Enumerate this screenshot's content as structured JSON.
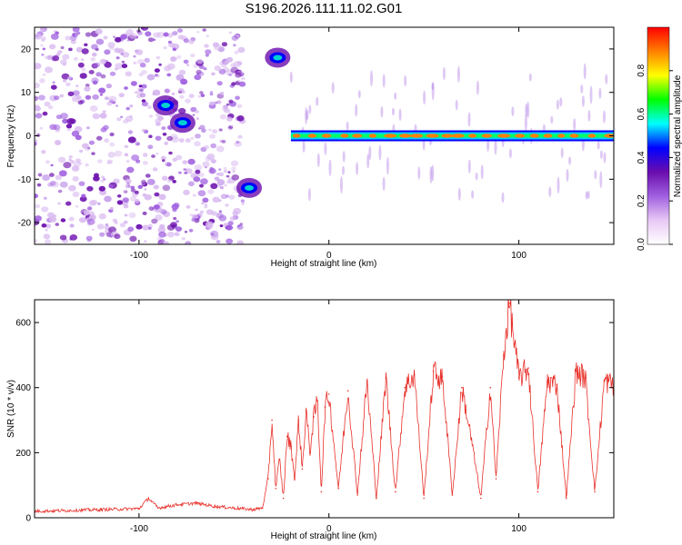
{
  "figure_title": "S196.2026.111.11.02.G01",
  "chart_data": [
    {
      "type": "heatmap",
      "title": "S196.2026.111.11.02.G01",
      "xlabel": "Height of straight line (km)",
      "ylabel": "Frequency (Hz)",
      "xlim": [
        -155,
        150
      ],
      "ylim": [
        -25,
        25
      ],
      "xticks": [
        -100,
        0,
        100
      ],
      "xtick_labels": [
        "-100",
        "0",
        "100"
      ],
      "yticks": [
        -20,
        -10,
        0,
        10,
        20
      ],
      "ytick_labels": [
        "-20",
        "-10",
        "0",
        "10",
        "20"
      ],
      "colorbar": {
        "label": "Normalized spectral amplitude",
        "range": [
          0,
          1
        ],
        "ticks": [
          0,
          0.2,
          0.4,
          0.6,
          0.8
        ],
        "tick_labels": [
          "0.0",
          "0.2",
          "0.4",
          "0.6",
          "0.8"
        ],
        "colors": [
          "#ffffff",
          "#e8c8f5",
          "#a060e0",
          "#6a0dad",
          "#0000ff",
          "#00ffff",
          "#00ff00",
          "#ffff00",
          "#ff8000",
          "#ff0000"
        ]
      },
      "features": [
        {
          "name": "noise region",
          "x_range": [
            -155,
            -45
          ],
          "freq_range": [
            -25,
            25
          ],
          "amplitude": 0.1
        },
        {
          "name": "patch",
          "x": -86,
          "freq": 7,
          "amplitude": 0.3
        },
        {
          "name": "patch",
          "x": -77,
          "freq": 3,
          "amplitude": 0.25
        },
        {
          "name": "patch",
          "x": -42,
          "freq": -12,
          "amplitude": 0.3
        },
        {
          "name": "patch",
          "x": -27,
          "freq": 18,
          "amplitude": 0.32
        },
        {
          "name": "line",
          "x_range": [
            -20,
            150
          ],
          "freq": 0,
          "amplitude": 0.9
        }
      ]
    },
    {
      "type": "line",
      "xlabel": "Height of straight line (km)",
      "ylabel": "SNR (10 * v/v)",
      "xlim": [
        -155,
        150
      ],
      "ylim": [
        0,
        670
      ],
      "xticks": [
        -100,
        0,
        100
      ],
      "xtick_labels": [
        "-100",
        "0",
        "100"
      ],
      "yticks": [
        0,
        200,
        400,
        600
      ],
      "ytick_labels": [
        "0",
        "200",
        "400",
        "600"
      ],
      "series": [
        {
          "name": "SNR",
          "color": "#e8302a",
          "x": [
            -155,
            -140,
            -120,
            -100,
            -95,
            -90,
            -80,
            -70,
            -60,
            -50,
            -40,
            -35,
            -32,
            -30,
            -28,
            -26,
            -24,
            -22,
            -20,
            -18,
            -16,
            -14,
            -12,
            -10,
            -8,
            -6,
            -4,
            -2,
            0,
            5,
            10,
            15,
            20,
            25,
            30,
            35,
            40,
            45,
            50,
            55,
            60,
            65,
            70,
            75,
            80,
            85,
            88,
            92,
            95,
            100,
            105,
            110,
            115,
            120,
            125,
            130,
            135,
            140,
            145,
            150
          ],
          "values": [
            20,
            22,
            25,
            28,
            60,
            30,
            40,
            45,
            35,
            30,
            25,
            30,
            120,
            300,
            90,
            180,
            60,
            250,
            220,
            120,
            300,
            150,
            330,
            200,
            310,
            360,
            80,
            340,
            380,
            90,
            390,
            70,
            420,
            60,
            430,
            80,
            400,
            440,
            60,
            450,
            420,
            70,
            400,
            240,
            60,
            400,
            120,
            500,
            660,
            430,
            460,
            80,
            420,
            410,
            60,
            450,
            430,
            80,
            420,
            410
          ]
        }
      ]
    }
  ]
}
